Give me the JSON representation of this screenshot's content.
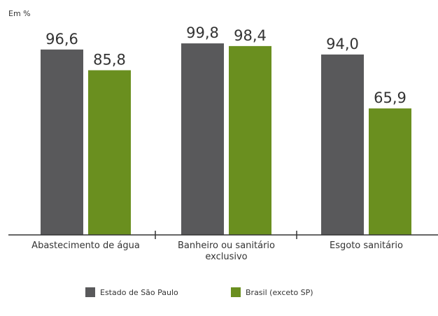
{
  "chart_data": {
    "type": "bar",
    "unit_label": "Em %",
    "categories": [
      "Abastecimento de água",
      "Banheiro ou sanitário exclusivo",
      "Esgoto sanitário"
    ],
    "series": [
      {
        "name": "Estado de São Paulo",
        "color": "#59595b",
        "values": [
          96.6,
          99.8,
          94.0
        ],
        "value_labels": [
          "96,6",
          "99,8",
          "94,0"
        ]
      },
      {
        "name": "Brasil (exceto SP)",
        "color": "#6a8f1f",
        "values": [
          85.8,
          98.4,
          65.9
        ],
        "value_labels": [
          "85,8",
          "98,4",
          "65,9"
        ]
      }
    ],
    "ylim": [
      0,
      100
    ]
  }
}
